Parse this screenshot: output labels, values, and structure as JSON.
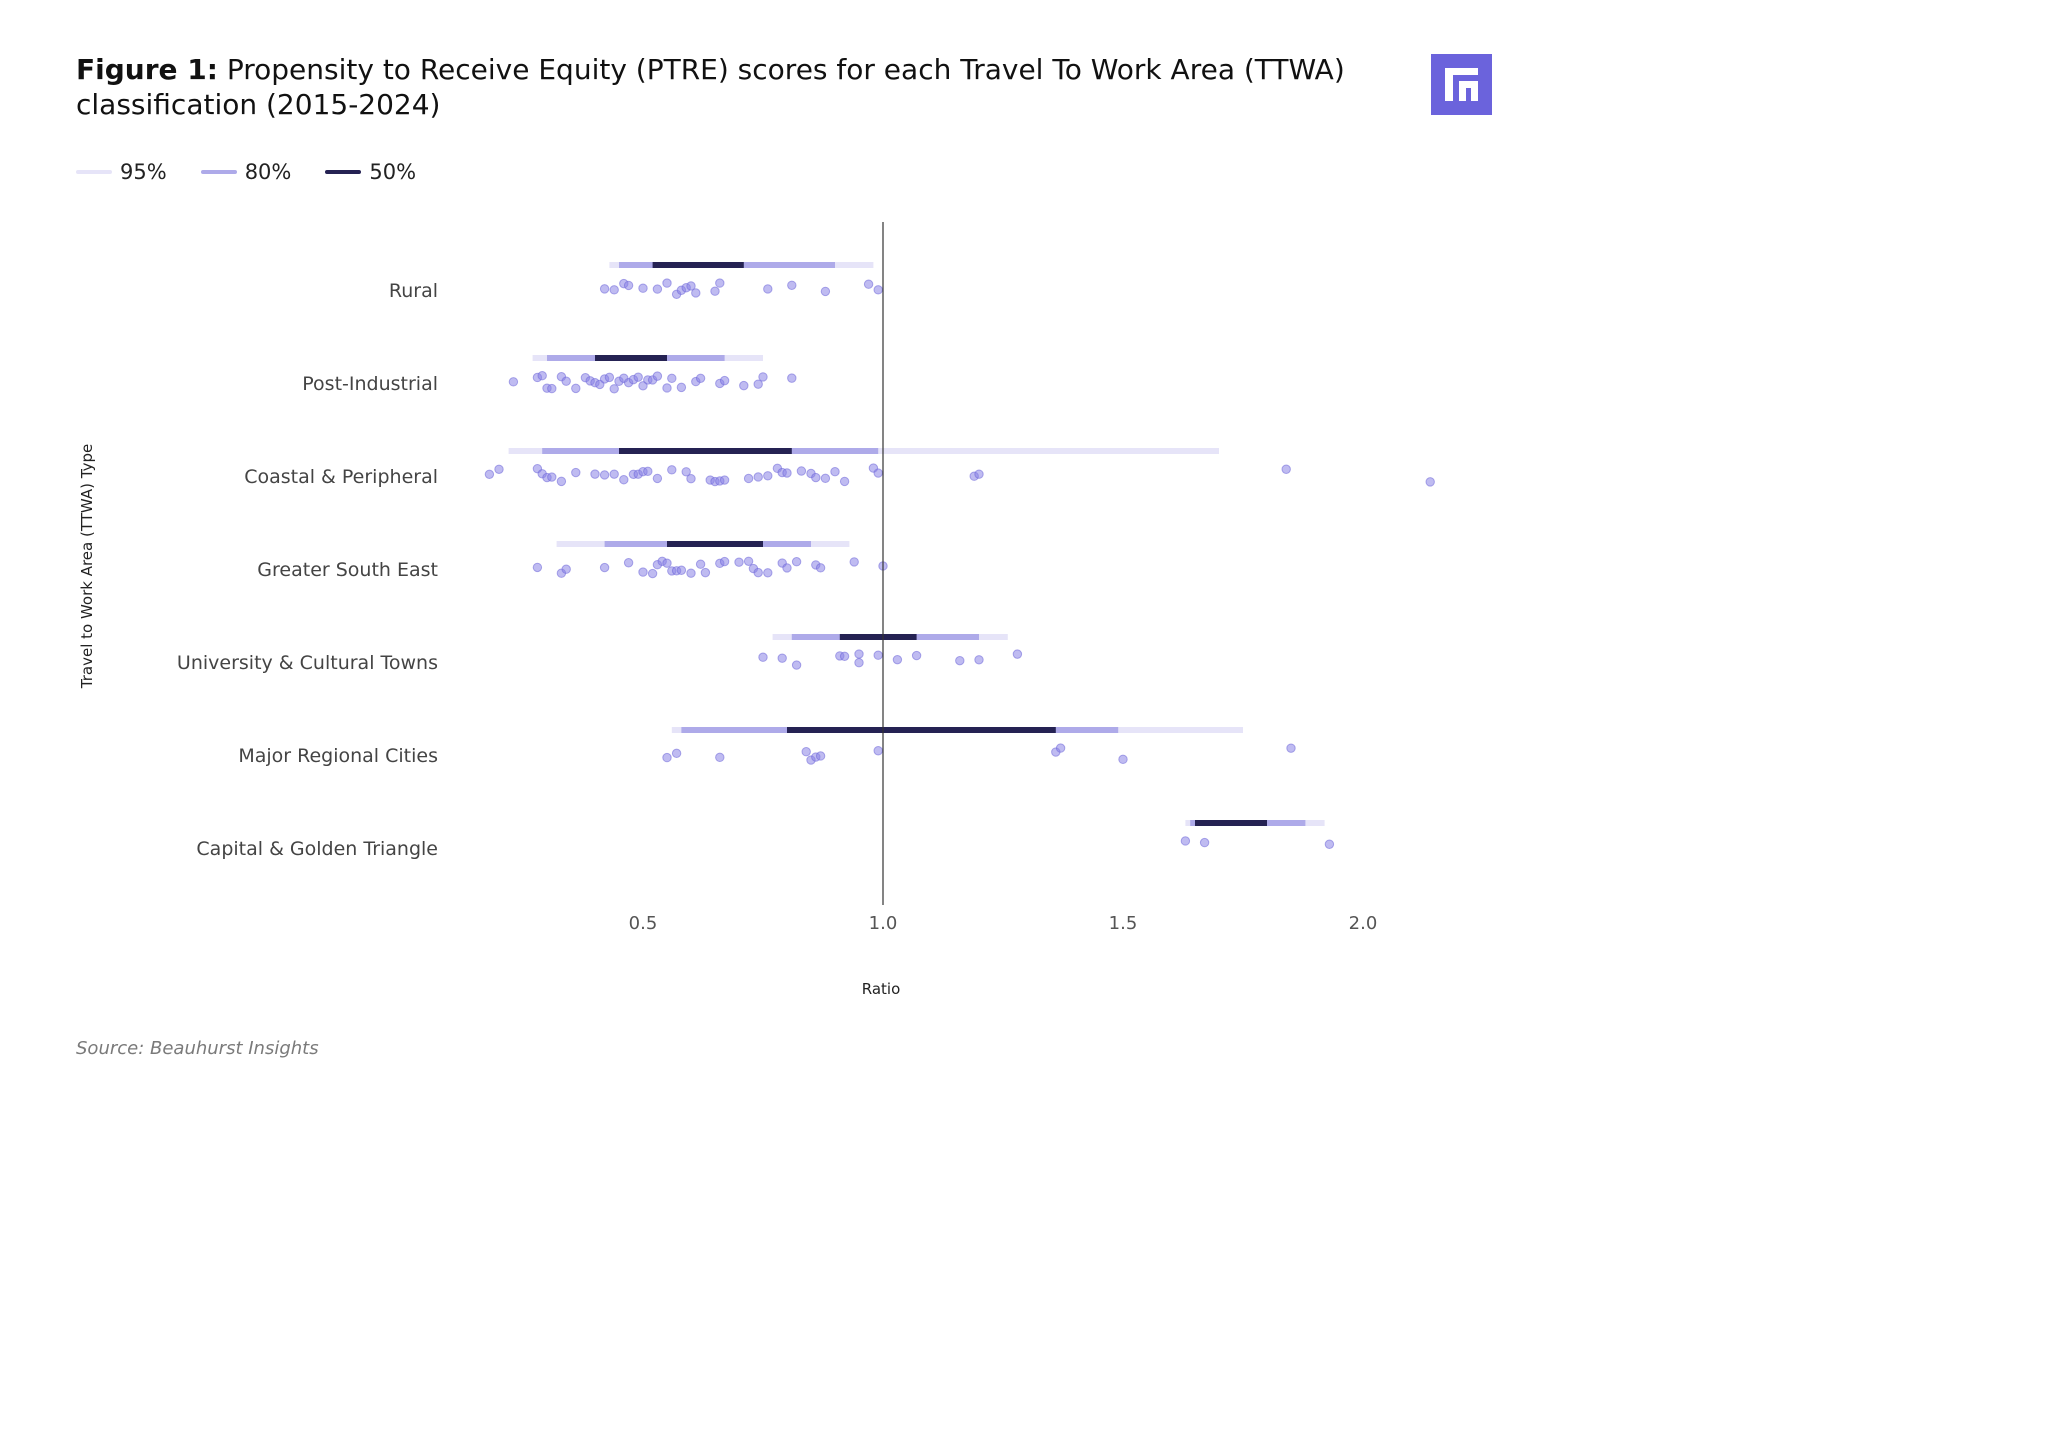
{
  "header": {
    "figure_label": "Figure 1:",
    "title_text": "Propensity to Receive Equity (PTRE) scores for each Travel To Work Area (TTWA) classification (2015-2024)"
  },
  "source": "Source: Beauhurst Insights",
  "logo": {
    "icon": "beauhurst-logo-icon",
    "color": "#6b63dc"
  },
  "colors": {
    "band95": "#e6e4f8",
    "band80": "#aeaae9",
    "band50": "#252253",
    "dot": "#8a83e6",
    "refline": "#333333"
  },
  "legend": [
    {
      "label": "95%",
      "color": "#e6e4f8"
    },
    {
      "label": "80%",
      "color": "#aeaae9"
    },
    {
      "label": "50%",
      "color": "#252253"
    }
  ],
  "chart_data": {
    "type": "interval-dotplot",
    "xlabel": "Ratio",
    "ylabel": "Travel to Work Area (TTWA) Type",
    "xticks": [
      0.5,
      1.0,
      1.5,
      2.0
    ],
    "xtick_labels": [
      "0.5",
      "1.0",
      "1.5",
      "2.0"
    ],
    "xlim": [
      0.13,
      2.2
    ],
    "reference_line": 1.0,
    "categories": [
      "Rural",
      "Post-Industrial",
      "Coastal & Peripheral",
      "Greater South East",
      "University & Cultural Towns",
      "Major Regional Cities",
      "Capital & Golden Triangle"
    ],
    "series": [
      {
        "category": "Rural",
        "ci95": [
          0.43,
          0.98
        ],
        "ci80": [
          0.45,
          0.9
        ],
        "ci50": [
          0.52,
          0.71
        ],
        "points": [
          0.42,
          0.44,
          0.46,
          0.47,
          0.5,
          0.53,
          0.55,
          0.57,
          0.58,
          0.59,
          0.6,
          0.61,
          0.65,
          0.66,
          0.76,
          0.81,
          0.88,
          0.97,
          0.99
        ]
      },
      {
        "category": "Post-Industrial",
        "ci95": [
          0.27,
          0.75
        ],
        "ci80": [
          0.3,
          0.67
        ],
        "ci50": [
          0.4,
          0.55
        ],
        "points": [
          0.23,
          0.28,
          0.29,
          0.3,
          0.31,
          0.33,
          0.34,
          0.36,
          0.38,
          0.39,
          0.4,
          0.41,
          0.42,
          0.43,
          0.44,
          0.45,
          0.46,
          0.47,
          0.48,
          0.49,
          0.5,
          0.51,
          0.52,
          0.53,
          0.55,
          0.56,
          0.58,
          0.61,
          0.62,
          0.66,
          0.67,
          0.71,
          0.74,
          0.75,
          0.81
        ]
      },
      {
        "category": "Coastal & Peripheral",
        "ci95": [
          0.22,
          1.7
        ],
        "ci80": [
          0.29,
          0.99
        ],
        "ci50": [
          0.45,
          0.81
        ],
        "points": [
          0.18,
          0.2,
          0.28,
          0.29,
          0.3,
          0.31,
          0.33,
          0.36,
          0.4,
          0.42,
          0.44,
          0.46,
          0.48,
          0.49,
          0.5,
          0.51,
          0.53,
          0.56,
          0.59,
          0.6,
          0.64,
          0.65,
          0.66,
          0.67,
          0.72,
          0.74,
          0.76,
          0.78,
          0.79,
          0.8,
          0.83,
          0.85,
          0.86,
          0.88,
          0.9,
          0.92,
          0.98,
          0.99,
          1.19,
          1.2,
          1.84,
          2.14
        ]
      },
      {
        "category": "Greater South East",
        "ci95": [
          0.32,
          0.93
        ],
        "ci80": [
          0.42,
          0.85
        ],
        "ci50": [
          0.55,
          0.75
        ],
        "points": [
          0.28,
          0.33,
          0.34,
          0.42,
          0.47,
          0.5,
          0.52,
          0.53,
          0.54,
          0.55,
          0.56,
          0.57,
          0.58,
          0.6,
          0.62,
          0.63,
          0.66,
          0.67,
          0.7,
          0.72,
          0.73,
          0.74,
          0.76,
          0.79,
          0.8,
          0.82,
          0.86,
          0.87,
          0.94,
          1.0
        ]
      },
      {
        "category": "University & Cultural Towns",
        "ci95": [
          0.77,
          1.26
        ],
        "ci80": [
          0.81,
          1.2
        ],
        "ci50": [
          0.91,
          1.07
        ],
        "points": [
          0.75,
          0.79,
          0.82,
          0.91,
          0.92,
          0.95,
          0.95,
          0.99,
          1.03,
          1.07,
          1.16,
          1.2,
          1.28
        ]
      },
      {
        "category": "Major Regional Cities",
        "ci95": [
          0.56,
          1.75
        ],
        "ci80": [
          0.58,
          1.49
        ],
        "ci50": [
          0.8,
          1.36
        ],
        "points": [
          0.55,
          0.57,
          0.66,
          0.84,
          0.85,
          0.86,
          0.87,
          0.99,
          1.36,
          1.37,
          1.5,
          1.85
        ]
      },
      {
        "category": "Capital & Golden Triangle",
        "ci95": [
          1.63,
          1.92
        ],
        "ci80": [
          1.64,
          1.88
        ],
        "ci50": [
          1.65,
          1.8
        ],
        "points": [
          1.63,
          1.67,
          1.93
        ]
      }
    ]
  }
}
